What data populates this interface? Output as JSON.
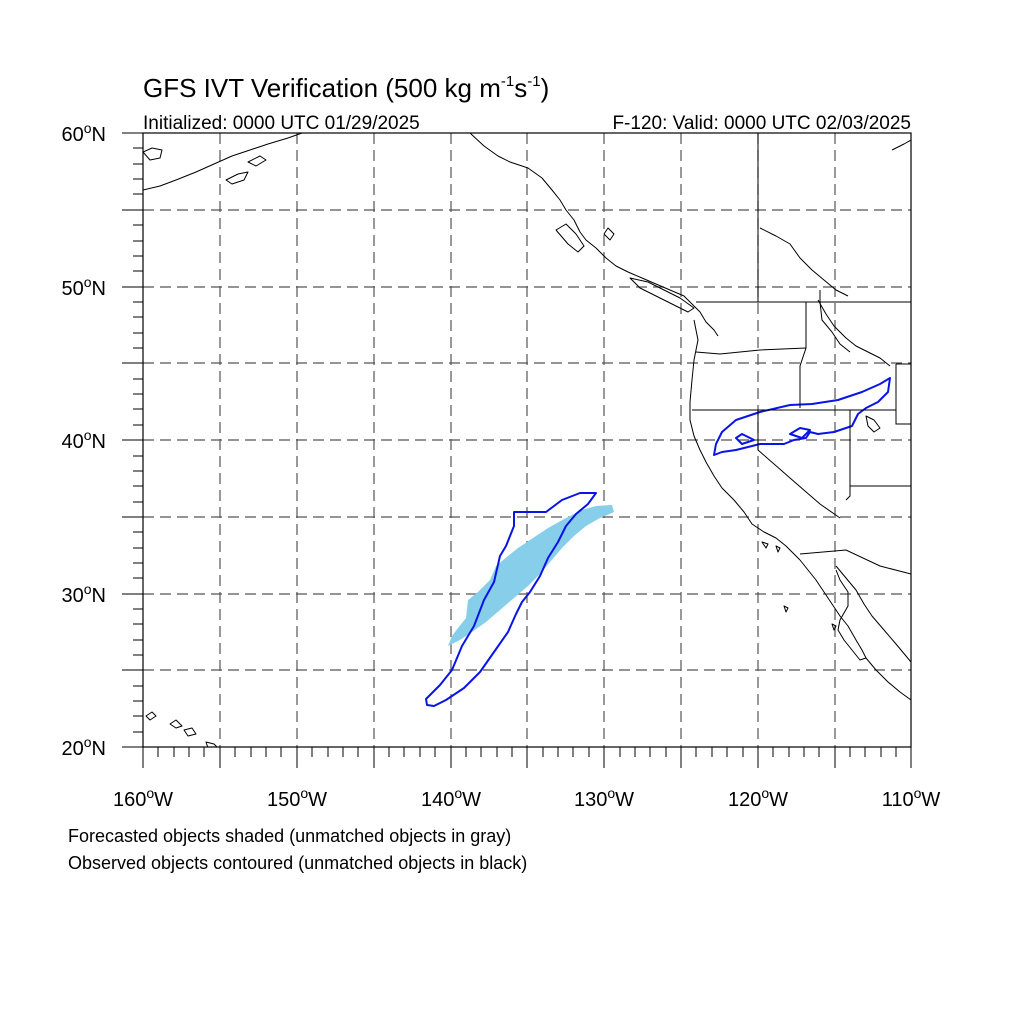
{
  "title": {
    "main": "GFS IVT Verification (500 kg m",
    "sup1": "-1",
    "mid": "s",
    "sup2": "-1",
    "end": ")"
  },
  "subtitle": {
    "initialized": "Initialized: 0000 UTC 01/29/2025",
    "valid": "F-120: Valid: 0000 UTC 02/03/2025"
  },
  "axes": {
    "lat_labels": [
      {
        "deg": "60",
        "suffix": "N"
      },
      {
        "deg": "50",
        "suffix": "N"
      },
      {
        "deg": "40",
        "suffix": "N"
      },
      {
        "deg": "30",
        "suffix": "N"
      },
      {
        "deg": "20",
        "suffix": "N"
      }
    ],
    "lon_labels": [
      {
        "deg": "160",
        "suffix": "W"
      },
      {
        "deg": "150",
        "suffix": "W"
      },
      {
        "deg": "140",
        "suffix": "W"
      },
      {
        "deg": "130",
        "suffix": "W"
      },
      {
        "deg": "120",
        "suffix": "W"
      },
      {
        "deg": "110",
        "suffix": "W"
      }
    ],
    "lat_range": [
      20,
      60
    ],
    "lon_range": [
      -160,
      -110
    ]
  },
  "legend": {
    "forecast_note": "Forecasted objects shaded (unmatched objects in gray)",
    "observed_note": "Observed objects contoured (unmatched objects in black)"
  },
  "colors": {
    "forecast_fill": "#87ceeb",
    "observed_contour": "#0a14e6"
  }
}
